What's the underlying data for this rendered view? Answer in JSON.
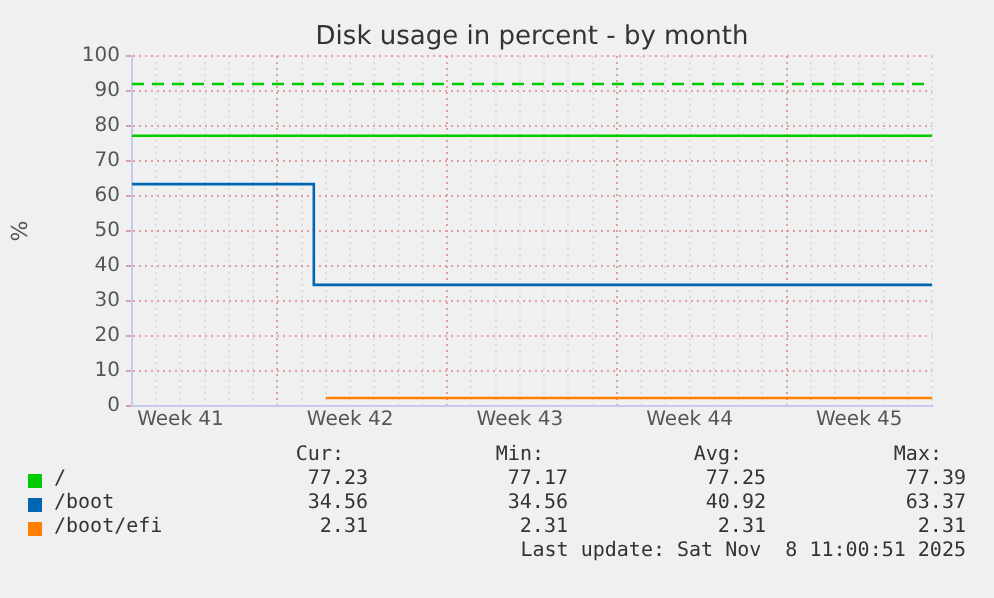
{
  "chart_data": {
    "type": "step",
    "title": "Disk usage in percent - by month",
    "ylabel": "%",
    "categories": [
      null,
      null,
      "Week 41",
      null,
      null,
      null,
      null,
      null,
      null,
      "Week 42",
      null,
      null,
      null,
      null,
      null,
      null,
      "Week 43",
      null,
      null,
      null,
      null,
      null,
      null,
      "Week 44",
      null,
      null,
      null,
      null,
      null,
      null,
      "Week 45",
      null,
      null,
      null
    ],
    "series": [
      {
        "name": "/",
        "color": "#00cc00",
        "values": [
          77.2,
          77.2,
          77.2,
          77.2,
          77.2,
          77.2,
          77.2,
          77.2,
          77.2,
          77.2,
          77.2,
          77.2,
          77.2,
          77.2,
          77.2,
          77.2,
          77.2,
          77.2,
          77.2,
          77.2,
          77.2,
          77.2,
          77.2,
          77.2,
          77.2,
          77.2,
          77.2,
          77.2,
          77.2,
          77.2,
          77.2,
          77.2,
          77.2,
          77.2
        ]
      },
      {
        "name": "/boot",
        "color": "#0066b3",
        "values": [
          63.4,
          63.4,
          63.4,
          63.4,
          63.4,
          63.4,
          63.4,
          63.4,
          34.6,
          34.6,
          34.6,
          34.6,
          34.6,
          34.6,
          34.6,
          34.6,
          34.6,
          34.6,
          34.6,
          34.6,
          34.6,
          34.6,
          34.6,
          34.6,
          34.6,
          34.6,
          34.6,
          34.6,
          34.6,
          34.6,
          34.6,
          34.6,
          34.6,
          34.6
        ]
      },
      {
        "name": "/boot/efi",
        "color": "#ff8000",
        "values": [
          null,
          null,
          null,
          null,
          null,
          null,
          null,
          null,
          2.3,
          2.3,
          2.3,
          2.3,
          2.3,
          2.3,
          2.3,
          2.3,
          2.3,
          2.3,
          2.3,
          2.3,
          2.3,
          2.3,
          2.3,
          2.3,
          2.3,
          2.3,
          2.3,
          2.3,
          2.3,
          2.3,
          2.3,
          2.3,
          2.3,
          2.3
        ]
      }
    ],
    "ylim": [
      0,
      100
    ],
    "yticks": [
      0,
      10,
      20,
      30,
      40,
      50,
      60,
      70,
      80,
      90,
      100
    ],
    "grid": true,
    "legend": "bottom",
    "ref_lines": [
      {
        "axis": "y",
        "value": 92,
        "color": "#00cc00",
        "line_style": "dashed"
      }
    ],
    "annotations": [
      "Cur:",
      "Min:",
      "Avg:",
      "Max:",
      "77.23",
      "77.17",
      "77.25",
      "77.39",
      "34.56",
      "34.56",
      "40.92",
      "63.37",
      "2.31",
      "2.31",
      "2.31",
      "2.31",
      "Last update: Sat Nov  8 11:00:51 2025"
    ]
  }
}
